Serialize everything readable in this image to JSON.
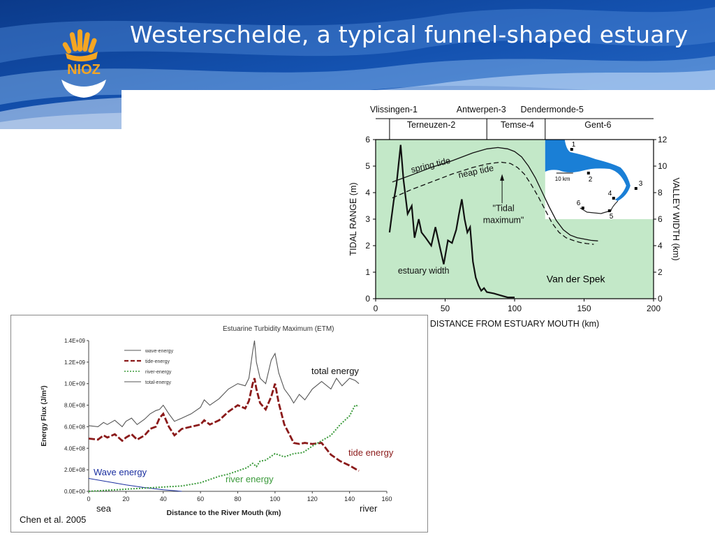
{
  "slide": {
    "title": "Westerschelde, a typical funnel-shaped estuary",
    "logo_text": "NIOZ",
    "brand_color": "#f5a623"
  },
  "chart_data": [
    {
      "type": "line",
      "title": "",
      "xlabel": "DISTANCE FROM ESTUARY MOUTH (km)",
      "ylabel": "TIDAL RANGE (m)",
      "y2label": "VALLEY WIDTH (km)",
      "xlim": [
        0,
        200
      ],
      "ylim": [
        0,
        6
      ],
      "y2lim": [
        0,
        12
      ],
      "xticks": [
        "0",
        "50",
        "100",
        "150",
        "200"
      ],
      "yticks": [
        "0",
        "1",
        "2",
        "3",
        "4",
        "5",
        "6"
      ],
      "y2ticks": [
        "0",
        "2",
        "4",
        "6",
        "8",
        "10",
        "12"
      ],
      "top_stations_row1": [
        {
          "label": "Vlissingen-1",
          "x": 13
        },
        {
          "label": "Antwerpen-3",
          "x": 76
        },
        {
          "label": "Dendermonde-5",
          "x": 127
        }
      ],
      "top_stations_row2": [
        {
          "label": "Terneuzen-2",
          "x": 40
        },
        {
          "label": "Temse-4",
          "x": 102
        },
        {
          "label": "Gent-6",
          "x": 160
        }
      ],
      "station_ticks": [
        10,
        80,
        122
      ],
      "series": [
        {
          "name": "spring tide",
          "x": [
            12,
            25,
            40,
            55,
            70,
            80,
            88,
            95,
            100,
            105,
            110,
            115,
            120,
            125,
            130,
            135,
            140,
            145,
            150,
            155,
            160
          ],
          "y": [
            4.4,
            4.65,
            4.95,
            5.2,
            5.5,
            5.65,
            5.7,
            5.65,
            5.55,
            5.35,
            5.0,
            4.55,
            4.0,
            3.45,
            2.95,
            2.6,
            2.4,
            2.3,
            2.25,
            2.2,
            2.18
          ]
        },
        {
          "name": "neap tide",
          "x": [
            12,
            25,
            40,
            55,
            70,
            80,
            90,
            97,
            102,
            107,
            112,
            117,
            122,
            127,
            132,
            137,
            142,
            147,
            152,
            157
          ],
          "y": [
            3.8,
            4.1,
            4.4,
            4.7,
            4.95,
            5.08,
            5.15,
            5.1,
            4.95,
            4.7,
            4.3,
            3.85,
            3.35,
            2.85,
            2.5,
            2.3,
            2.2,
            2.12,
            2.08,
            2.05
          ]
        },
        {
          "name": "estuary width",
          "axis": "right",
          "x": [
            10,
            13,
            15,
            17,
            18,
            20,
            23,
            26,
            28,
            31,
            33,
            36,
            40,
            43,
            46,
            49,
            52,
            55,
            58,
            60,
            62,
            64,
            66,
            68,
            70,
            72,
            74,
            76,
            78,
            80,
            85,
            90,
            95,
            100
          ],
          "y": [
            5.0,
            7.4,
            8.6,
            10.6,
            11.6,
            9.0,
            6.4,
            7.0,
            4.6,
            6.0,
            5.0,
            4.6,
            4.0,
            5.4,
            4.0,
            2.6,
            4.4,
            4.2,
            5.2,
            6.4,
            7.5,
            6.0,
            5.0,
            5.4,
            2.8,
            1.6,
            1.0,
            0.6,
            0.8,
            0.5,
            0.4,
            0.25,
            0.1,
            0.1
          ]
        }
      ],
      "annotations": [
        {
          "text": "spring tide"
        },
        {
          "text": "neap tide"
        },
        {
          "text": "\"Tidal"
        },
        {
          "text": "maximum\""
        },
        {
          "text": "estuary width"
        }
      ],
      "inset_map": {
        "scale_label": "10 km",
        "stations": [
          "1",
          "2",
          "3",
          "4",
          "5",
          "6"
        ],
        "water_color": "#1a7fd6"
      },
      "background_color": "#c3e8c8",
      "credit": "Van der Spek"
    },
    {
      "type": "line",
      "title": "",
      "xlabel": "Distance to the River Mouth (km)",
      "ylabel": "Energy Flux (J/m²)",
      "xlim": [
        0,
        160
      ],
      "ylim": [
        0,
        1.4
      ],
      "xticks": [
        "0",
        "20",
        "40",
        "60",
        "80",
        "100",
        "120",
        "140",
        "160"
      ],
      "yticks": [
        "0.0E+00",
        "2.0E+08",
        "4.0E+08",
        "6.0E+08",
        "8.0E+08",
        "1.0E+09",
        "1.2E+09",
        "1.4E+09"
      ],
      "legend": [
        "wave-energy",
        "tide-energy",
        "river-energy",
        "total-energy"
      ],
      "legend_position": "top-left",
      "series": [
        {
          "name": "wave-energy",
          "color": "#1a2fa0",
          "x": [
            0,
            10,
            20,
            30,
            40,
            50
          ],
          "y": [
            0.12,
            0.09,
            0.06,
            0.035,
            0.015,
            0.0
          ]
        },
        {
          "name": "tide-energy",
          "color": "#8b1a1a",
          "x": [
            0,
            5,
            8,
            10,
            14,
            18,
            20,
            23,
            26,
            30,
            33,
            36,
            38,
            40,
            43,
            46,
            50,
            55,
            60,
            62,
            65,
            70,
            75,
            80,
            84,
            86,
            88,
            89,
            90,
            92,
            95,
            98,
            100,
            102,
            105,
            108,
            110,
            113,
            116,
            120,
            125,
            130,
            135,
            140,
            145
          ],
          "y": [
            0.49,
            0.48,
            0.52,
            0.5,
            0.53,
            0.47,
            0.5,
            0.53,
            0.48,
            0.52,
            0.58,
            0.6,
            0.68,
            0.72,
            0.6,
            0.52,
            0.58,
            0.6,
            0.62,
            0.66,
            0.62,
            0.66,
            0.74,
            0.8,
            0.77,
            0.84,
            1.0,
            1.05,
            0.95,
            0.82,
            0.76,
            0.88,
            1.0,
            0.82,
            0.62,
            0.52,
            0.45,
            0.44,
            0.45,
            0.44,
            0.45,
            0.34,
            0.28,
            0.24,
            0.19
          ]
        },
        {
          "name": "river-energy",
          "color": "#3a9a3a",
          "x": [
            0,
            10,
            20,
            30,
            40,
            50,
            60,
            70,
            75,
            80,
            85,
            88,
            90,
            92,
            95,
            100,
            105,
            110,
            115,
            120,
            125,
            130,
            135,
            140,
            143,
            145
          ],
          "y": [
            0.0,
            0.01,
            0.02,
            0.03,
            0.04,
            0.05,
            0.08,
            0.14,
            0.16,
            0.19,
            0.22,
            0.26,
            0.23,
            0.28,
            0.29,
            0.35,
            0.32,
            0.35,
            0.36,
            0.42,
            0.47,
            0.52,
            0.62,
            0.7,
            0.8,
            0.79
          ]
        },
        {
          "name": "total-energy",
          "color": "#555555",
          "x": [
            0,
            5,
            8,
            10,
            14,
            18,
            20,
            23,
            26,
            30,
            33,
            36,
            38,
            40,
            43,
            46,
            50,
            55,
            60,
            62,
            65,
            70,
            75,
            80,
            84,
            86,
            88,
            89,
            90,
            92,
            95,
            98,
            100,
            102,
            105,
            108,
            110,
            113,
            116,
            120,
            125,
            130,
            133,
            136,
            140,
            143,
            145
          ],
          "y": [
            0.61,
            0.6,
            0.64,
            0.62,
            0.66,
            0.6,
            0.65,
            0.68,
            0.62,
            0.67,
            0.72,
            0.75,
            0.76,
            0.8,
            0.72,
            0.65,
            0.68,
            0.72,
            0.78,
            0.85,
            0.8,
            0.86,
            0.95,
            1.0,
            0.98,
            1.05,
            1.3,
            1.4,
            1.2,
            1.05,
            1.0,
            1.22,
            1.28,
            1.1,
            0.95,
            0.88,
            0.82,
            0.9,
            0.85,
            0.95,
            1.02,
            0.95,
            1.05,
            0.98,
            1.05,
            1.03,
            1.0
          ]
        }
      ],
      "annotations": [
        {
          "text": "Estuarine Turbidity Maximum (ETM)"
        },
        {
          "text": "total energy"
        },
        {
          "text": "tide energy"
        },
        {
          "text": "Wave energy"
        },
        {
          "text": "river energy"
        },
        {
          "text": "sea"
        },
        {
          "text": "river"
        }
      ],
      "credit": "Chen et al. 2005"
    }
  ]
}
